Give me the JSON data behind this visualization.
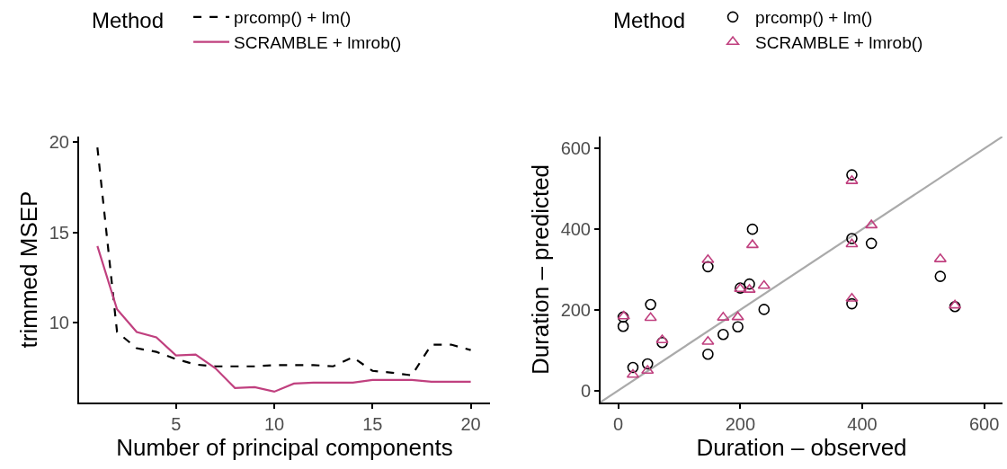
{
  "chart_data": [
    {
      "type": "line",
      "xlabel": "Number of principal components",
      "ylabel": "trimmed MSEP",
      "legend_title": "Method",
      "legend": "top",
      "grid": false,
      "marker": "none",
      "x": [
        1,
        2,
        3,
        4,
        5,
        6,
        7,
        8,
        9,
        10,
        11,
        12,
        13,
        14,
        15,
        16,
        17,
        18,
        19,
        20
      ],
      "xlim": [
        0.07,
        20.98
      ],
      "ylim": [
        5.6,
        20.3
      ],
      "xticks": [
        5,
        10,
        15,
        20
      ],
      "yticks": [
        10,
        15,
        20
      ],
      "series": [
        {
          "name": "prcomp() + lm()",
          "color": "#000000",
          "line_style": "dashed",
          "values": [
            19.7,
            9.5,
            8.6,
            8.4,
            8.0,
            7.7,
            7.6,
            7.6,
            7.6,
            7.67,
            7.67,
            7.67,
            7.6,
            8.1,
            7.35,
            7.25,
            7.1,
            8.8,
            8.8,
            8.5
          ]
        },
        {
          "name": "SCRAMBLE + lmrob()",
          "color": "#c0407f",
          "line_style": "solid",
          "values": [
            14.25,
            10.75,
            9.5,
            9.2,
            8.2,
            8.25,
            7.5,
            6.4,
            6.45,
            6.2,
            6.65,
            6.7,
            6.7,
            6.7,
            6.85,
            6.85,
            6.85,
            6.75,
            6.75,
            6.75
          ]
        }
      ]
    },
    {
      "type": "scatter",
      "xlabel": "Duration – observed",
      "ylabel": "Duration – predicted",
      "legend_title": "Method",
      "legend": "top",
      "grid": false,
      "xlim": [
        -29,
        630
      ],
      "ylim": [
        -30,
        630
      ],
      "xticks": [
        0,
        200,
        400,
        600
      ],
      "yticks": [
        0,
        200,
        400,
        600
      ],
      "series": [
        {
          "type": "line",
          "color": "#aaaaaa",
          "line_style": "solid",
          "marker": "none",
          "x": [
            -29,
            630
          ],
          "values": [
            -29,
            630
          ]
        },
        {
          "name": "prcomp() + lm()",
          "color": "#000000",
          "marker": "circle",
          "x": [
            8,
            8,
            24,
            48,
            53,
            72,
            147,
            147,
            172,
            196,
            200,
            215,
            220,
            239,
            383,
            383,
            383,
            415,
            528,
            552
          ],
          "values": [
            182,
            159,
            57,
            66,
            213,
            119,
            90,
            307,
            139,
            158,
            254,
            264,
            400,
            201,
            535,
            377,
            215,
            365,
            283,
            208
          ]
        },
        {
          "name": "SCRAMBLE + lmrob()",
          "color": "#c0407f",
          "marker": "triangle",
          "x": [
            9,
            53,
            72,
            24,
            48,
            147,
            147,
            172,
            196,
            200,
            215,
            220,
            239,
            383,
            383,
            383,
            415,
            528,
            552
          ],
          "values": [
            184,
            180,
            125,
            39,
            49,
            121,
            324,
            181,
            182,
            252,
            250,
            361,
            260,
            520,
            363,
            228,
            410,
            326,
            211
          ]
        }
      ]
    }
  ]
}
